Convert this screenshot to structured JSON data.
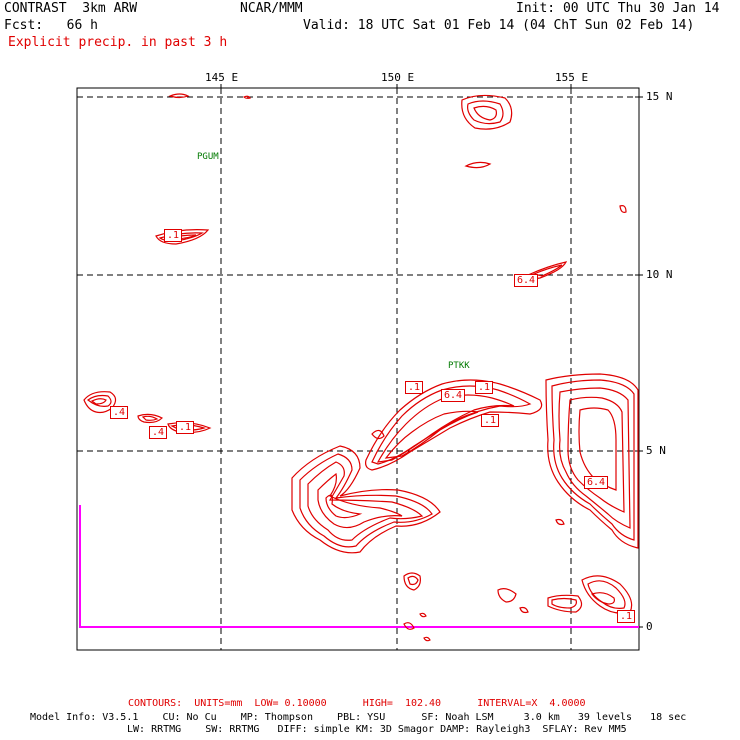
{
  "header": {
    "model": "CONTRAST  3km ARW",
    "org": "NCAR/MMM",
    "init": "Init: 00 UTC Thu 30 Jan 14",
    "fcst": "Fcst:   66 h",
    "valid": "Valid: 18 UTC Sat 01 Feb 14 (04 ChT Sun 02 Feb 14)",
    "field": "Explicit precip. in past 3 h"
  },
  "axes": {
    "lon_labels": [
      "145 E",
      "150 E",
      "155 E"
    ],
    "lat_labels": [
      "15 N",
      "10 N",
      "5 N",
      "0"
    ]
  },
  "stations": [
    "PGUM",
    "PTKK"
  ],
  "contour_labels": [
    ".1",
    "6.4",
    ".4",
    ".4",
    ".1",
    ".1",
    "6.4",
    ".1",
    ".1",
    "6.4",
    ".1"
  ],
  "footer": {
    "contours": "CONTOURS:  UNITS=mm  LOW= 0.10000      HIGH=  102.40      INTERVAL=X  4.0000",
    "info1": "Model Info: V3.5.1    CU: No Cu    MP: Thompson    PBL: YSU      SF: Noah LSM     3.0 km   39 levels   18 sec",
    "info2": "LW: RRTMG    SW: RRTMG   DIFF: simple KM: 3D Smagor DAMP: Rayleigh3  SFLAY: Rev MM5"
  },
  "colors": {
    "contour": "#e00000",
    "station": "#007a00",
    "boundary": "#ff00ff",
    "grid": "#000000"
  }
}
